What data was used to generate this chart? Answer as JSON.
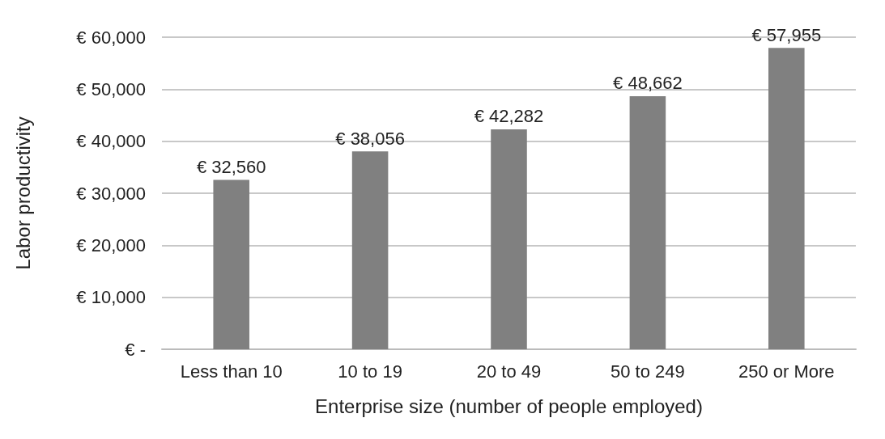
{
  "chart_data": {
    "type": "bar",
    "xlabel": "Enterprise size (number of people employed)",
    "ylabel": "Labor productivity",
    "categories": [
      "Less than 10",
      "10 to 19",
      "20 to 49",
      "50 to 249",
      "250 or More"
    ],
    "values": [
      32560,
      38056,
      42282,
      48662,
      57955
    ],
    "value_labels": [
      "€ 32,560",
      "€ 38,056",
      "€ 42,282",
      "€ 48,662",
      "€ 57,955"
    ],
    "color": "#808080",
    "ylim": [
      0,
      60000
    ],
    "yticks": [
      {
        "value": 0,
        "label": "€ -"
      },
      {
        "value": 10000,
        "label": "€ 10,000"
      },
      {
        "value": 20000,
        "label": "€ 20,000"
      },
      {
        "value": 30000,
        "label": "€ 30,000"
      },
      {
        "value": 40000,
        "label": "€ 40,000"
      },
      {
        "value": 50000,
        "label": "€ 50,000"
      },
      {
        "value": 60000,
        "label": "€ 60,000"
      }
    ],
    "grid": "y"
  }
}
